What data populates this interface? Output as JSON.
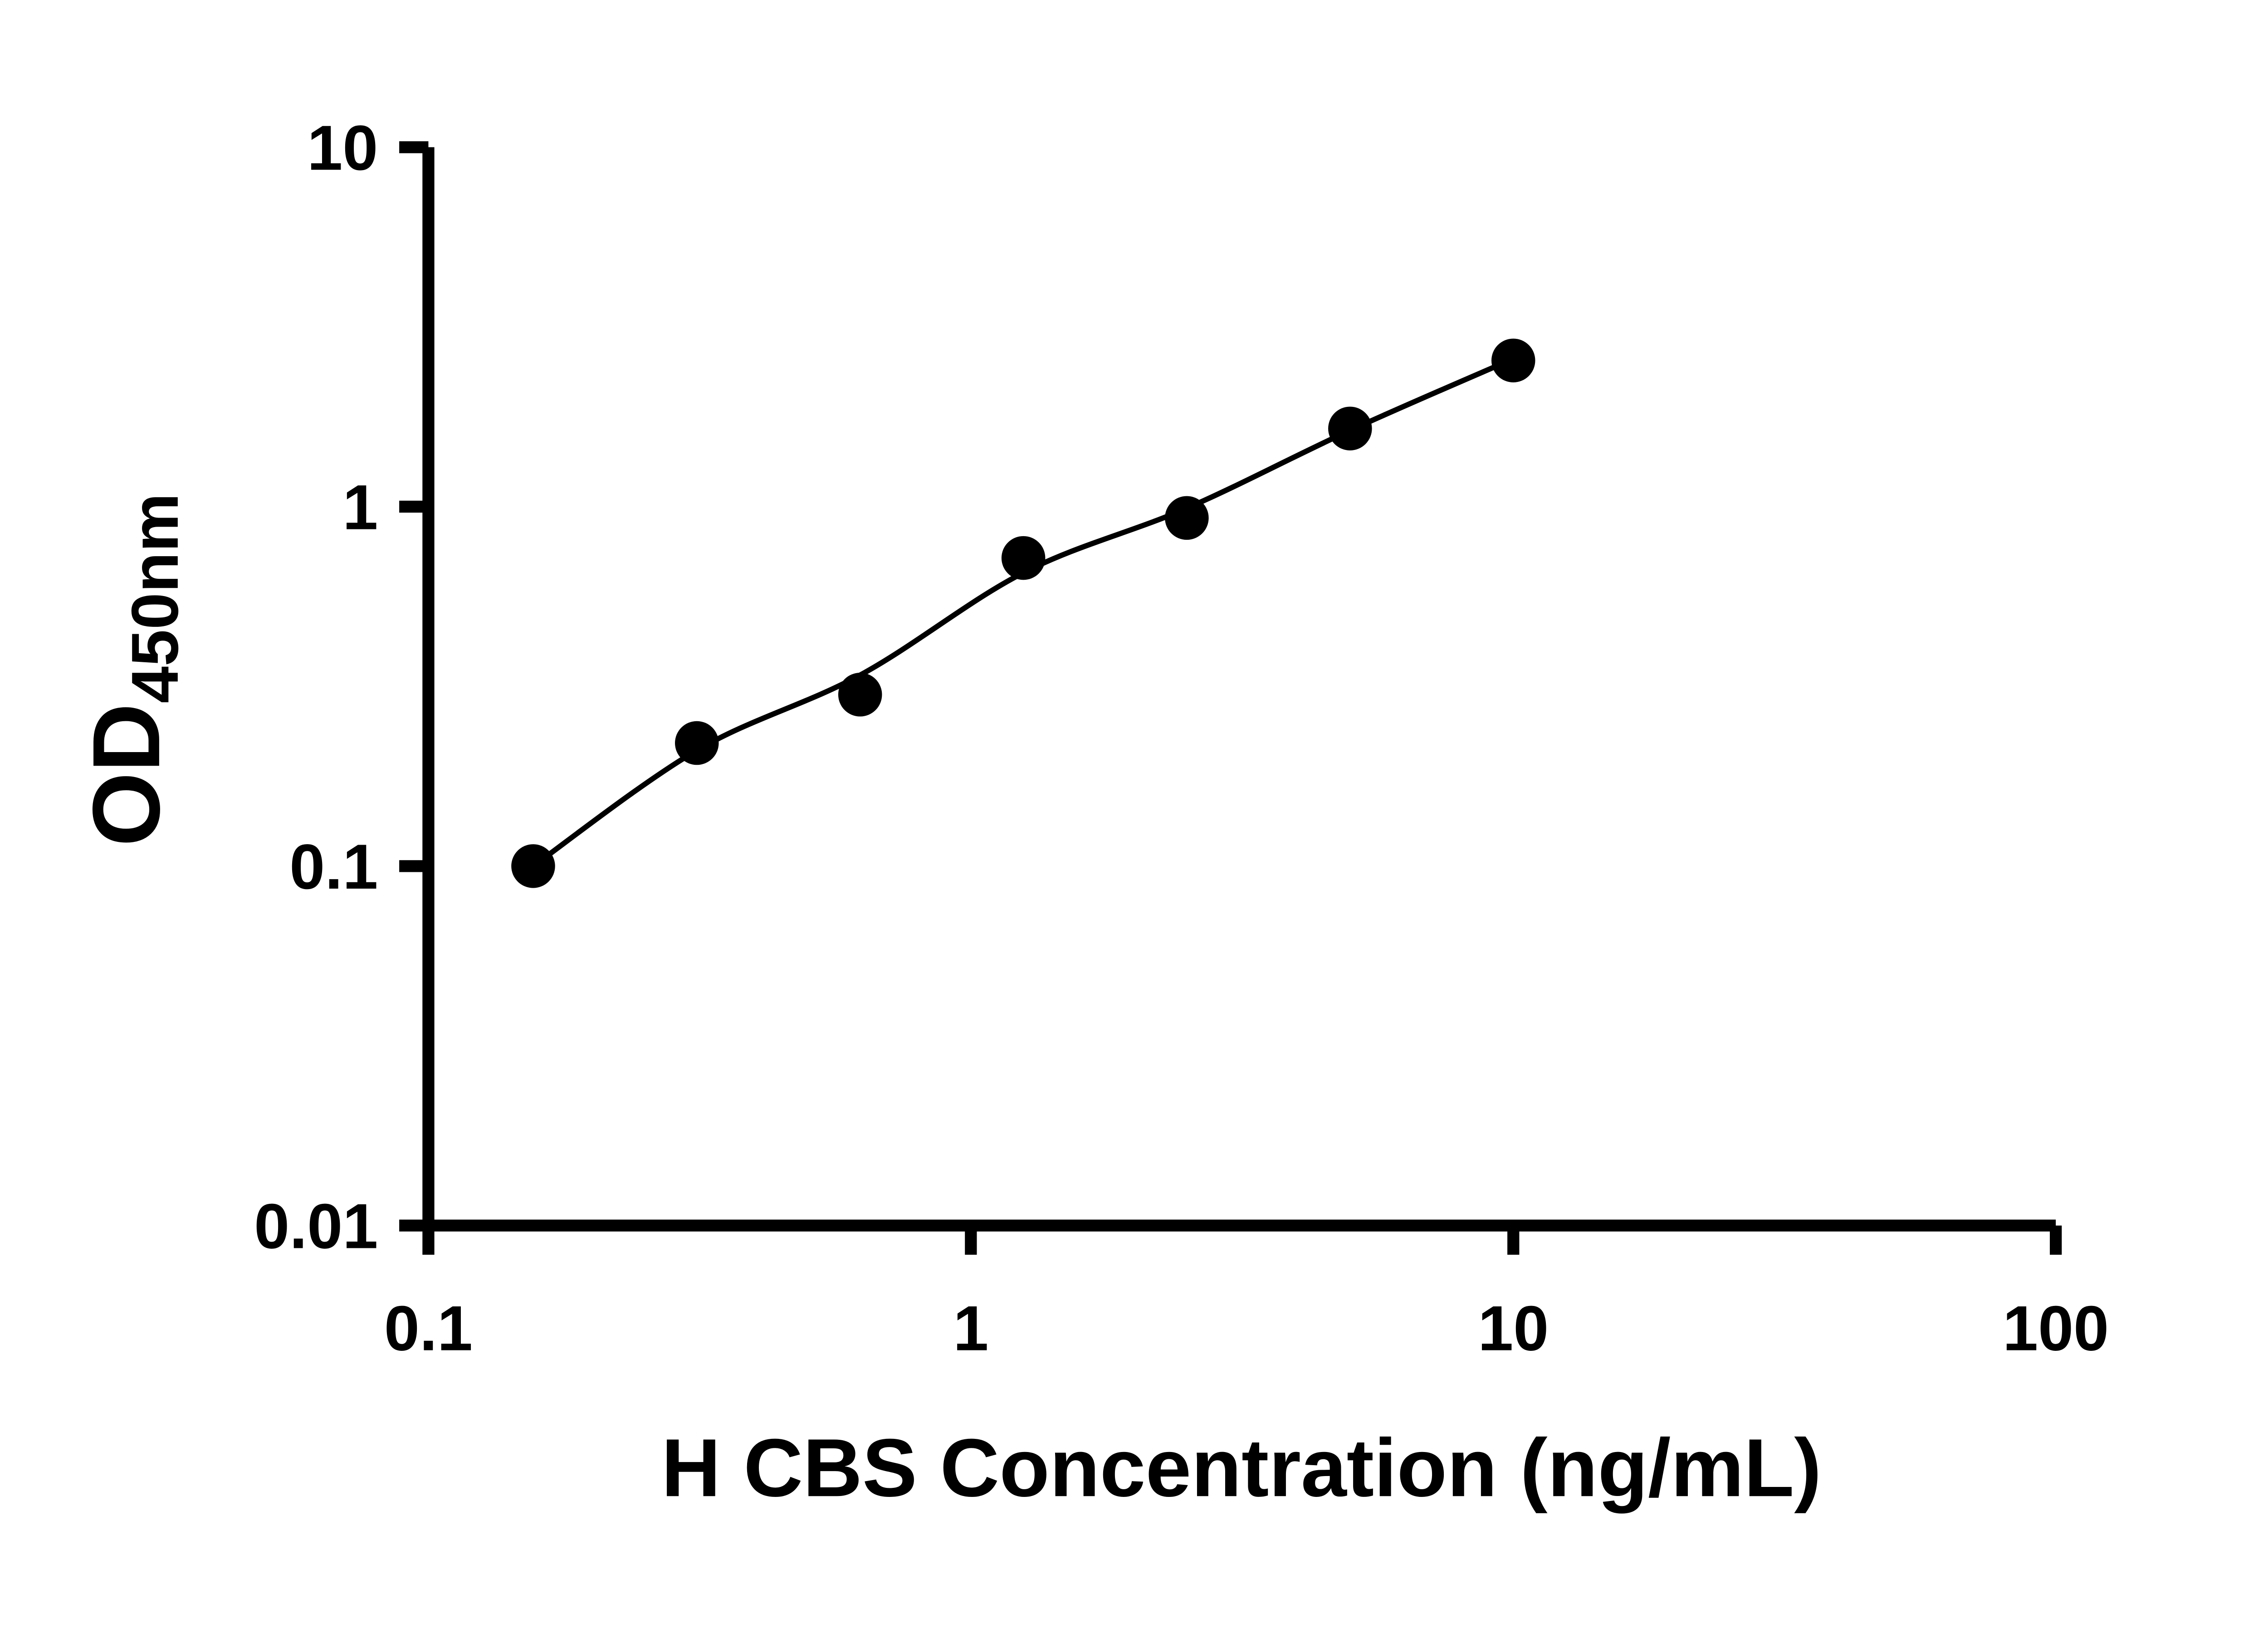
{
  "figure": {
    "background_color": "#ffffff"
  },
  "chart_data": {
    "type": "scatter",
    "title": "",
    "xlabel": "H CBS Concentration (ng/mL)",
    "ylabel_main": "OD",
    "ylabel_sub": "450nm",
    "x_scale": "log",
    "y_scale": "log",
    "xlim": [
      0.1,
      100
    ],
    "ylim": [
      0.01,
      10
    ],
    "x_ticks": [
      0.1,
      1,
      10,
      100
    ],
    "x_tick_labels": [
      "0.1",
      "1",
      "10",
      "100"
    ],
    "y_ticks": [
      0.01,
      0.1,
      1,
      10
    ],
    "y_tick_labels": [
      "0.01",
      "0.1",
      "1",
      "10"
    ],
    "grid": false,
    "legend": null,
    "axis_color": "#000000",
    "marker_color": "#000000",
    "line_color": "#000000",
    "points": [
      {
        "x": 0.156,
        "y": 0.1
      },
      {
        "x": 0.3125,
        "y": 0.22
      },
      {
        "x": 0.625,
        "y": 0.3
      },
      {
        "x": 1.25,
        "y": 0.72
      },
      {
        "x": 2.5,
        "y": 0.93
      },
      {
        "x": 5,
        "y": 1.65
      },
      {
        "x": 10,
        "y": 2.55
      }
    ],
    "fit_line": [
      {
        "x": 0.156,
        "y": 0.1
      },
      {
        "x": 0.3125,
        "y": 0.21
      },
      {
        "x": 0.625,
        "y": 0.34
      },
      {
        "x": 1.25,
        "y": 0.655
      },
      {
        "x": 2.5,
        "y": 0.99
      },
      {
        "x": 5,
        "y": 1.63
      },
      {
        "x": 10,
        "y": 2.58
      }
    ]
  }
}
